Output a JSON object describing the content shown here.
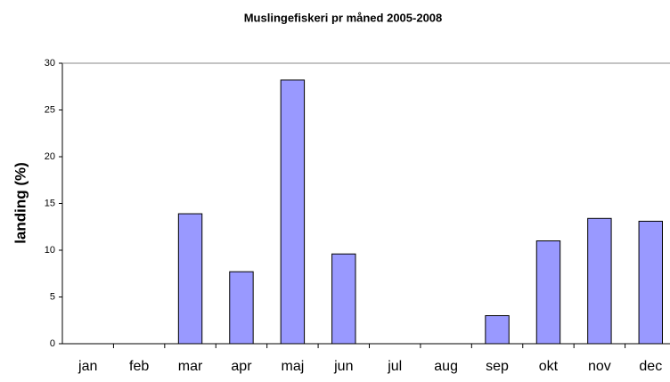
{
  "chart_data": {
    "type": "bar",
    "title": "Muslingefiskeri pr måned 2005-2008",
    "y_label": "landing (%)",
    "categories": [
      "jan",
      "feb",
      "mar",
      "apr",
      "maj",
      "jun",
      "jul",
      "aug",
      "sep",
      "okt",
      "nov",
      "dec"
    ],
    "values": [
      0,
      0,
      13.9,
      7.7,
      28.2,
      9.6,
      0,
      0,
      3.0,
      11.0,
      13.4,
      13.1
    ],
    "color": "#9999ff",
    "ylim": [
      0,
      30
    ],
    "yticks": [
      0,
      5,
      10,
      15,
      20,
      25,
      30
    ],
    "grid": false
  }
}
